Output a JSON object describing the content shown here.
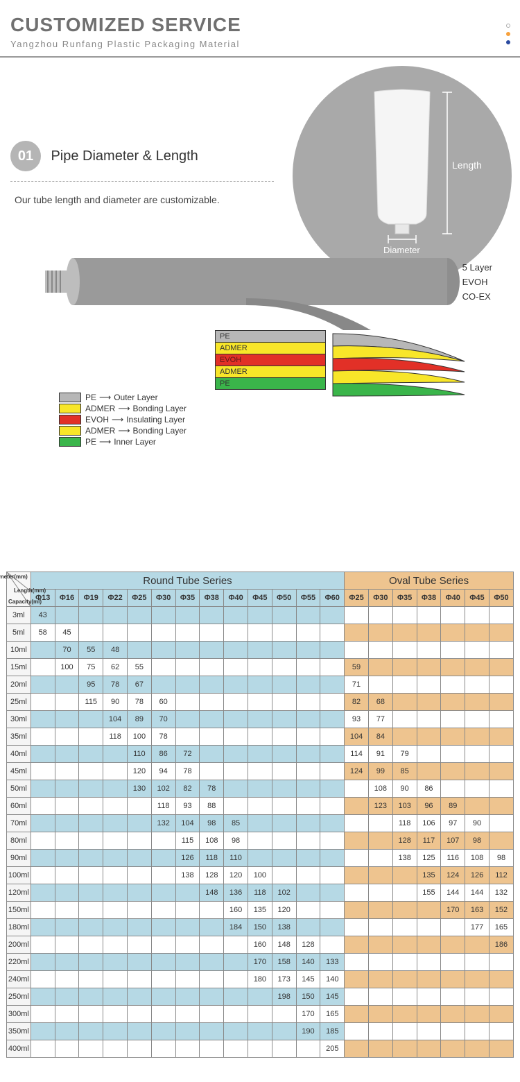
{
  "header": {
    "title": "CUSTOMIZED SERVICE",
    "subtitle": "Yangzhou Runfang Plastic Packaging Material"
  },
  "dots": [
    {
      "bg": "#ffffff",
      "border": "1px solid #aaa"
    },
    {
      "bg": "#f7a13c",
      "border": "none"
    },
    {
      "bg": "#2a4aa0",
      "border": "none"
    }
  ],
  "section1": {
    "num": "01",
    "title": "Pipe Diameter & Length",
    "desc": "Our tube length and diameter are customizable.",
    "circle_bg": "#a9a9a9",
    "length_label": "Length",
    "diameter_label": "Diameter"
  },
  "layers_label": [
    "5 Layer",
    "EVOH",
    "CO-EX"
  ],
  "layer_legend": [
    {
      "color": "#b7b7b7",
      "name": "PE",
      "role": "Outer Layer"
    },
    {
      "color": "#f8e629",
      "name": "ADMER",
      "role": "Bonding Layer"
    },
    {
      "color": "#e23027",
      "name": "EVOH",
      "role": "Insulating Layer"
    },
    {
      "color": "#f8e629",
      "name": "ADMER",
      "role": "Bonding Layer"
    },
    {
      "color": "#3ab54a",
      "name": "PE",
      "role": "Inner Layer"
    }
  ],
  "layer_stack": [
    {
      "color": "#b7b7b7",
      "label": "PE"
    },
    {
      "color": "#f8e629",
      "label": "ADMER"
    },
    {
      "color": "#e23027",
      "label": "EVOH",
      "text": "#5a1a1a"
    },
    {
      "color": "#f8e629",
      "label": "ADMER"
    },
    {
      "color": "#3ab54a",
      "label": "PE"
    }
  ],
  "table": {
    "corner_labels": [
      "Diameter(mm)",
      "Length(mm)",
      "Capacity(ml)"
    ],
    "round_title": "Round Tube Series",
    "oval_title": "Oval Tube Series",
    "round_cols": [
      "Φ13",
      "Φ16",
      "Φ19",
      "Φ22",
      "Φ25",
      "Φ30",
      "Φ35",
      "Φ38",
      "Φ40",
      "Φ45",
      "Φ50",
      "Φ55",
      "Φ60"
    ],
    "oval_cols": [
      "Φ25",
      "Φ30",
      "Φ35",
      "Φ38",
      "Φ40",
      "Φ45",
      "Φ50"
    ],
    "rows": [
      {
        "cap": "3ml",
        "shade": true,
        "r": [
          "43",
          "",
          "",
          "",
          "",
          "",
          "",
          "",
          "",
          "",
          "",
          "",
          ""
        ],
        "o": [
          "",
          "",
          "",
          "",
          "",
          "",
          ""
        ]
      },
      {
        "cap": "5ml",
        "shade": false,
        "r": [
          "58",
          "45",
          "",
          "",
          "",
          "",
          "",
          "",
          "",
          "",
          "",
          "",
          ""
        ],
        "o": [
          "",
          "",
          "",
          "",
          "",
          "",
          ""
        ]
      },
      {
        "cap": "10ml",
        "shade": true,
        "r": [
          "",
          "70",
          "55",
          "48",
          "",
          "",
          "",
          "",
          "",
          "",
          "",
          "",
          ""
        ],
        "o": [
          "",
          "",
          "",
          "",
          "",
          "",
          ""
        ]
      },
      {
        "cap": "15ml",
        "shade": false,
        "r": [
          "",
          "100",
          "75",
          "62",
          "55",
          "",
          "",
          "",
          "",
          "",
          "",
          "",
          ""
        ],
        "o": [
          "59",
          "",
          "",
          "",
          "",
          "",
          ""
        ]
      },
      {
        "cap": "20ml",
        "shade": true,
        "r": [
          "",
          "",
          "95",
          "78",
          "67",
          "",
          "",
          "",
          "",
          "",
          "",
          "",
          ""
        ],
        "o": [
          "71",
          "",
          "",
          "",
          "",
          "",
          ""
        ]
      },
      {
        "cap": "25ml",
        "shade": false,
        "r": [
          "",
          "",
          "115",
          "90",
          "78",
          "60",
          "",
          "",
          "",
          "",
          "",
          "",
          ""
        ],
        "o": [
          "82",
          "68",
          "",
          "",
          "",
          "",
          ""
        ]
      },
      {
        "cap": "30ml",
        "shade": true,
        "r": [
          "",
          "",
          "",
          "104",
          "89",
          "70",
          "",
          "",
          "",
          "",
          "",
          "",
          ""
        ],
        "o": [
          "93",
          "77",
          "",
          "",
          "",
          "",
          ""
        ]
      },
      {
        "cap": "35ml",
        "shade": false,
        "r": [
          "",
          "",
          "",
          "118",
          "100",
          "78",
          "",
          "",
          "",
          "",
          "",
          "",
          ""
        ],
        "o": [
          "104",
          "84",
          "",
          "",
          "",
          "",
          ""
        ]
      },
      {
        "cap": "40ml",
        "shade": true,
        "r": [
          "",
          "",
          "",
          "",
          "110",
          "86",
          "72",
          "",
          "",
          "",
          "",
          "",
          ""
        ],
        "o": [
          "114",
          "91",
          "79",
          "",
          "",
          "",
          ""
        ]
      },
      {
        "cap": "45ml",
        "shade": false,
        "r": [
          "",
          "",
          "",
          "",
          "120",
          "94",
          "78",
          "",
          "",
          "",
          "",
          "",
          ""
        ],
        "o": [
          "124",
          "99",
          "85",
          "",
          "",
          "",
          ""
        ]
      },
      {
        "cap": "50ml",
        "shade": true,
        "r": [
          "",
          "",
          "",
          "",
          "130",
          "102",
          "82",
          "78",
          "",
          "",
          "",
          "",
          ""
        ],
        "o": [
          "",
          "108",
          "90",
          "86",
          "",
          "",
          ""
        ]
      },
      {
        "cap": "60ml",
        "shade": false,
        "r": [
          "",
          "",
          "",
          "",
          "",
          "118",
          "93",
          "88",
          "",
          "",
          "",
          "",
          ""
        ],
        "o": [
          "",
          "123",
          "103",
          "96",
          "89",
          "",
          ""
        ]
      },
      {
        "cap": "70ml",
        "shade": true,
        "r": [
          "",
          "",
          "",
          "",
          "",
          "132",
          "104",
          "98",
          "85",
          "",
          "",
          "",
          ""
        ],
        "o": [
          "",
          "",
          "118",
          "106",
          "97",
          "90",
          ""
        ]
      },
      {
        "cap": "80ml",
        "shade": false,
        "r": [
          "",
          "",
          "",
          "",
          "",
          "",
          "115",
          "108",
          "98",
          "",
          "",
          "",
          ""
        ],
        "o": [
          "",
          "",
          "128",
          "117",
          "107",
          "98",
          ""
        ]
      },
      {
        "cap": "90ml",
        "shade": true,
        "r": [
          "",
          "",
          "",
          "",
          "",
          "",
          "126",
          "118",
          "110",
          "",
          "",
          "",
          ""
        ],
        "o": [
          "",
          "",
          "138",
          "125",
          "116",
          "108",
          "98"
        ]
      },
      {
        "cap": "100ml",
        "shade": false,
        "r": [
          "",
          "",
          "",
          "",
          "",
          "",
          "138",
          "128",
          "120",
          "100",
          "",
          "",
          ""
        ],
        "o": [
          "",
          "",
          "",
          "135",
          "124",
          "126",
          "112"
        ]
      },
      {
        "cap": "120ml",
        "shade": true,
        "r": [
          "",
          "",
          "",
          "",
          "",
          "",
          "",
          "148",
          "136",
          "118",
          "102",
          "",
          ""
        ],
        "o": [
          "",
          "",
          "",
          "155",
          "144",
          "144",
          "132"
        ]
      },
      {
        "cap": "150ml",
        "shade": false,
        "r": [
          "",
          "",
          "",
          "",
          "",
          "",
          "",
          "",
          "160",
          "135",
          "120",
          "",
          ""
        ],
        "o": [
          "",
          "",
          "",
          "",
          "170",
          "163",
          "152"
        ]
      },
      {
        "cap": "180ml",
        "shade": true,
        "r": [
          "",
          "",
          "",
          "",
          "",
          "",
          "",
          "",
          "184",
          "150",
          "138",
          "",
          ""
        ],
        "o": [
          "",
          "",
          "",
          "",
          "",
          "177",
          "165"
        ]
      },
      {
        "cap": "200ml",
        "shade": false,
        "r": [
          "",
          "",
          "",
          "",
          "",
          "",
          "",
          "",
          "",
          "160",
          "148",
          "128",
          ""
        ],
        "o": [
          "",
          "",
          "",
          "",
          "",
          "",
          "186"
        ]
      },
      {
        "cap": "220ml",
        "shade": true,
        "r": [
          "",
          "",
          "",
          "",
          "",
          "",
          "",
          "",
          "",
          "170",
          "158",
          "140",
          "133"
        ],
        "o": [
          "",
          "",
          "",
          "",
          "",
          "",
          ""
        ]
      },
      {
        "cap": "240ml",
        "shade": false,
        "r": [
          "",
          "",
          "",
          "",
          "",
          "",
          "",
          "",
          "",
          "180",
          "173",
          "145",
          "140"
        ],
        "o": [
          "",
          "",
          "",
          "",
          "",
          "",
          ""
        ]
      },
      {
        "cap": "250ml",
        "shade": true,
        "r": [
          "",
          "",
          "",
          "",
          "",
          "",
          "",
          "",
          "",
          "",
          "198",
          "150",
          "145"
        ],
        "o": [
          "",
          "",
          "",
          "",
          "",
          "",
          ""
        ]
      },
      {
        "cap": "300ml",
        "shade": false,
        "r": [
          "",
          "",
          "",
          "",
          "",
          "",
          "",
          "",
          "",
          "",
          "",
          "170",
          "165"
        ],
        "o": [
          "",
          "",
          "",
          "",
          "",
          "",
          ""
        ]
      },
      {
        "cap": "350ml",
        "shade": true,
        "r": [
          "",
          "",
          "",
          "",
          "",
          "",
          "",
          "",
          "",
          "",
          "",
          "190",
          "185"
        ],
        "o": [
          "",
          "",
          "",
          "",
          "",
          "",
          ""
        ]
      },
      {
        "cap": "400ml",
        "shade": false,
        "r": [
          "",
          "",
          "",
          "",
          "",
          "",
          "",
          "",
          "",
          "",
          "",
          "",
          "205"
        ],
        "o": [
          "",
          "",
          "",
          "",
          "",
          "",
          ""
        ]
      }
    ],
    "colors": {
      "round_bg": "#b6d9e5",
      "oval_bg": "#eec48f",
      "border": "#888888"
    }
  }
}
